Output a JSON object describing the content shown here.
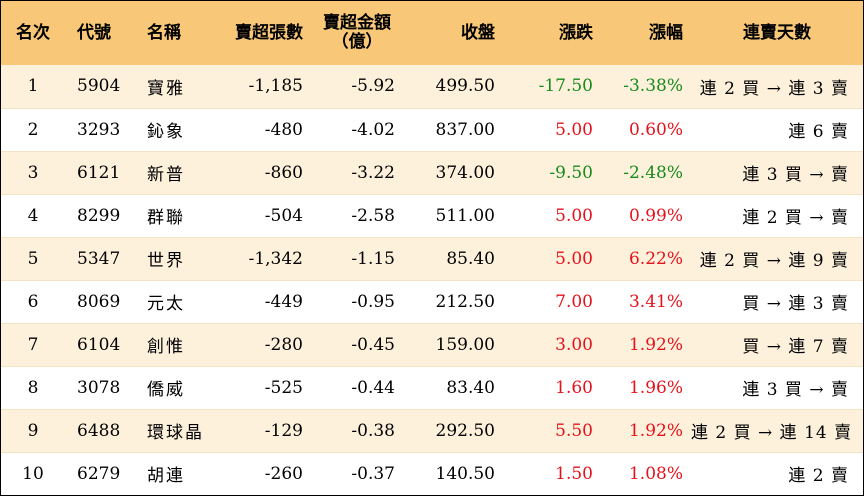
{
  "headers": {
    "rank": "名次",
    "code": "代號",
    "name": "名稱",
    "short_shares": "賣超張數",
    "short_amount_line1": "賣超金額",
    "short_amount_line2": "（億）",
    "close": "收盤",
    "change": "漲跌",
    "change_pct": "漲幅",
    "streak": "連賣天數"
  },
  "colors": {
    "header_bg": "#f8c777",
    "odd_row_bg": "#fdf1dc",
    "up": "#e5121b",
    "down": "#178a1b"
  },
  "rows": [
    {
      "rank": "1",
      "code": "5904",
      "name": "寶雅",
      "short_shares": "-1,185",
      "short_amount": "-5.92",
      "close": "499.50",
      "change": "-17.50",
      "change_pct": "-3.38%",
      "direction": "down",
      "streak": "連 2 買 → 連 3 賣"
    },
    {
      "rank": "2",
      "code": "3293",
      "name": "鈊象",
      "short_shares": "-480",
      "short_amount": "-4.02",
      "close": "837.00",
      "change": "5.00",
      "change_pct": "0.60%",
      "direction": "up",
      "streak": "連 6 賣"
    },
    {
      "rank": "3",
      "code": "6121",
      "name": "新普",
      "short_shares": "-860",
      "short_amount": "-3.22",
      "close": "374.00",
      "change": "-9.50",
      "change_pct": "-2.48%",
      "direction": "down",
      "streak": "連 3 買 → 賣"
    },
    {
      "rank": "4",
      "code": "8299",
      "name": "群聯",
      "short_shares": "-504",
      "short_amount": "-2.58",
      "close": "511.00",
      "change": "5.00",
      "change_pct": "0.99%",
      "direction": "up",
      "streak": "連 2 買 → 賣"
    },
    {
      "rank": "5",
      "code": "5347",
      "name": "世界",
      "short_shares": "-1,342",
      "short_amount": "-1.15",
      "close": "85.40",
      "change": "5.00",
      "change_pct": "6.22%",
      "direction": "up",
      "streak": "連 2 買 → 連 9 賣"
    },
    {
      "rank": "6",
      "code": "8069",
      "name": "元太",
      "short_shares": "-449",
      "short_amount": "-0.95",
      "close": "212.50",
      "change": "7.00",
      "change_pct": "3.41%",
      "direction": "up",
      "streak": "買 → 連 3 賣"
    },
    {
      "rank": "7",
      "code": "6104",
      "name": "創惟",
      "short_shares": "-280",
      "short_amount": "-0.45",
      "close": "159.00",
      "change": "3.00",
      "change_pct": "1.92%",
      "direction": "up",
      "streak": "買 → 連 7 賣"
    },
    {
      "rank": "8",
      "code": "3078",
      "name": "僑威",
      "short_shares": "-525",
      "short_amount": "-0.44",
      "close": "83.40",
      "change": "1.60",
      "change_pct": "1.96%",
      "direction": "up",
      "streak": "連 3 買 → 賣"
    },
    {
      "rank": "9",
      "code": "6488",
      "name": "環球晶",
      "short_shares": "-129",
      "short_amount": "-0.38",
      "close": "292.50",
      "change": "5.50",
      "change_pct": "1.92%",
      "direction": "up",
      "streak": "連 2 買 → 連 14 賣"
    },
    {
      "rank": "10",
      "code": "6279",
      "name": "胡連",
      "short_shares": "-260",
      "short_amount": "-0.37",
      "close": "140.50",
      "change": "1.50",
      "change_pct": "1.08%",
      "direction": "up",
      "streak": "連 2 賣"
    }
  ]
}
